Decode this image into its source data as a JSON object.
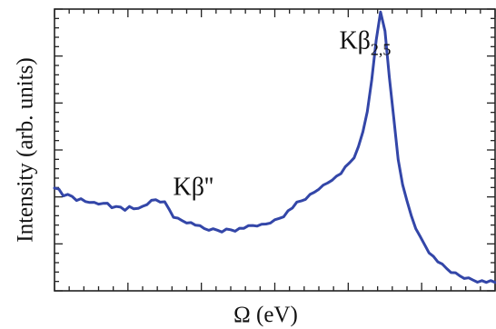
{
  "chart_data": {
    "type": "line",
    "xlabel": "Ω (eV)",
    "ylabel": "Intensity  (arb. units)",
    "xlim": [
      0,
      100
    ],
    "ylim": [
      0,
      100
    ],
    "grid": false,
    "series": [
      {
        "color": "#3346a8",
        "x": [
          0,
          1,
          2,
          3,
          4,
          5,
          6,
          7,
          8,
          9,
          10,
          11,
          12,
          13,
          14,
          15,
          16,
          17,
          18,
          19,
          20,
          21,
          22,
          23,
          24,
          25,
          26,
          27,
          28,
          29,
          30,
          31,
          32,
          33,
          34,
          35,
          36,
          37,
          38,
          39,
          40,
          41,
          42,
          43,
          44,
          45,
          46,
          47,
          48,
          49,
          50,
          51,
          52,
          53,
          54,
          55,
          56,
          57,
          58,
          59,
          60,
          61,
          62,
          63,
          64,
          65,
          66,
          67,
          68,
          69,
          70,
          71,
          72,
          73,
          74,
          75,
          76,
          77,
          78,
          79,
          80,
          81,
          82,
          83,
          84,
          85,
          86,
          87,
          88,
          89,
          90,
          91,
          92,
          93,
          94,
          95,
          96,
          97,
          98,
          99,
          100
        ],
        "values": [
          36.5,
          36.0,
          34.0,
          33.8,
          33.5,
          32.5,
          32.4,
          31.8,
          31.9,
          31.2,
          31.0,
          30.5,
          31.0,
          29.8,
          29.5,
          29.7,
          29.0,
          29.6,
          29.2,
          29.8,
          29.8,
          30.8,
          31.6,
          32.2,
          31.8,
          31.2,
          29.0,
          26.5,
          25.5,
          25.0,
          24.6,
          24.0,
          23.5,
          22.6,
          22.0,
          21.8,
          21.6,
          21.5,
          21.3,
          21.6,
          21.8,
          21.7,
          22.0,
          22.4,
          22.6,
          23.1,
          23.3,
          23.2,
          23.7,
          24.5,
          24.9,
          25.8,
          26.8,
          28.2,
          29.6,
          31.0,
          31.8,
          32.8,
          33.8,
          35.0,
          36.5,
          37.2,
          38.4,
          39.8,
          40.5,
          41.8,
          43.5,
          45.4,
          47.5,
          50.8,
          56.5,
          64.0,
          74.5,
          89.0,
          99.5,
          92.0,
          76.0,
          61.0,
          46.5,
          38.0,
          31.5,
          26.5,
          22.5,
          19.0,
          16.5,
          14.0,
          12.0,
          10.5,
          9.0,
          7.8,
          6.8,
          6.0,
          5.3,
          4.8,
          4.3,
          3.9,
          3.6,
          3.4,
          3.2,
          3.1,
          3.0
        ]
      }
    ],
    "annotations": [
      {
        "text_main": "Kβ''",
        "text_sub": "",
        "x": 31.5,
        "y": 34.0
      },
      {
        "text_main": "Kβ",
        "text_sub": "2,5",
        "x": 70.5,
        "y": 86.0
      }
    ]
  }
}
